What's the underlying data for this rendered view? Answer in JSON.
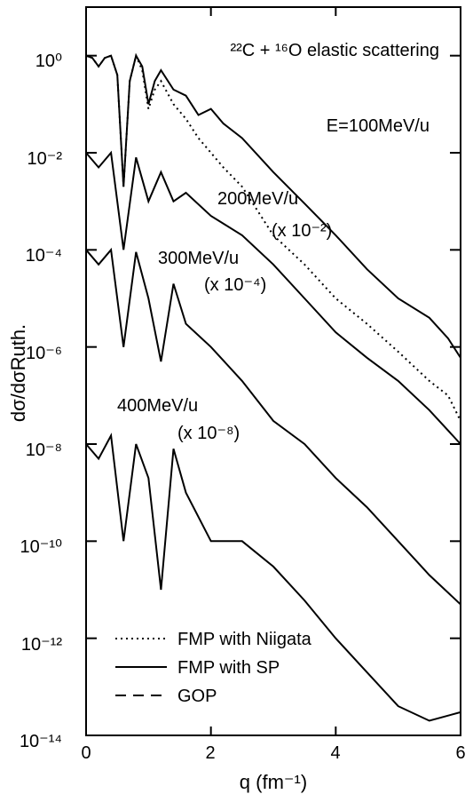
{
  "chart_data": {
    "type": "line",
    "title": "",
    "annotations": {
      "top": "²²C + ¹⁶O elastic scattering",
      "e100": "E=100MeV/u",
      "e200": "200MeV/u",
      "e200_scale": "(x 10⁻²)",
      "e300": "300MeV/u",
      "e300_scale": "(x 10⁻⁴)",
      "e400": "400MeV/u",
      "e400_scale": "(x 10⁻⁸)"
    },
    "xlabel": "q (fm⁻¹)",
    "ylabel": "dσ/dσRuth.",
    "xlim": [
      0,
      6
    ],
    "ylim": [
      1e-14,
      10
    ],
    "y_scale": "log",
    "x_ticks": [
      "0",
      "2",
      "4",
      "6"
    ],
    "y_ticks": [
      "10⁰",
      "10⁻²",
      "10⁻⁴",
      "10⁻⁶",
      "10⁻⁸",
      "10⁻¹⁰",
      "10⁻¹²",
      "10⁻¹⁴"
    ],
    "grid": false,
    "legend": {
      "position": "bottom-left",
      "entries": [
        {
          "label": "FMP with Niigata",
          "style": "dotted"
        },
        {
          "label": "FMP with SP",
          "style": "solid"
        },
        {
          "label": "GOP",
          "style": "long-dash"
        }
      ]
    },
    "groups": [
      {
        "energy": "100MeV/u",
        "scale": 1,
        "series": [
          {
            "name": "FMP with SP",
            "x": [
              0,
              0.1,
              0.2,
              0.3,
              0.4,
              0.5,
              0.6,
              0.7,
              0.8,
              0.9,
              1.0,
              1.1,
              1.2,
              1.4,
              1.6,
              1.8,
              2.0,
              2.2,
              2.5,
              3.0,
              3.5,
              4.0,
              4.5,
              5.0,
              5.5,
              5.8,
              6.0
            ],
            "y": [
              1,
              0.9,
              0.6,
              0.9,
              1,
              0.4,
              0.002,
              0.3,
              1,
              0.6,
              0.1,
              0.3,
              0.5,
              0.2,
              0.15,
              0.06,
              0.08,
              0.04,
              0.02,
              0.004,
              0.0009,
              0.0002,
              4e-05,
              1e-05,
              4e-06,
              1.5e-06,
              6e-07
            ]
          },
          {
            "name": "FMP with Niigata",
            "x": [
              0,
              0.1,
              0.2,
              0.3,
              0.4,
              0.5,
              0.6,
              0.7,
              0.8,
              0.9,
              1.0,
              1.1,
              1.2,
              1.4,
              1.6,
              1.8,
              2.0,
              2.2,
              2.5,
              3.0,
              3.5,
              4.0,
              4.5,
              5.0,
              5.5,
              5.8,
              6.0
            ],
            "y": [
              1,
              0.9,
              0.6,
              0.9,
              1,
              0.4,
              0.002,
              0.3,
              1,
              0.5,
              0.08,
              0.2,
              0.3,
              0.1,
              0.05,
              0.02,
              0.01,
              0.005,
              0.002,
              0.0002,
              5e-05,
              1e-05,
              3e-06,
              8e-07,
              2e-07,
              1e-07,
              3e-08
            ]
          }
        ]
      },
      {
        "energy": "200MeV/u",
        "scale": 0.01,
        "series": [
          {
            "name": "FMP with SP",
            "x": [
              0,
              0.2,
              0.4,
              0.6,
              0.8,
              1.0,
              1.2,
              1.4,
              1.6,
              2.0,
              2.5,
              3.0,
              3.5,
              4.0,
              4.5,
              5.0,
              5.5,
              6.0
            ],
            "y": [
              0.01,
              0.005,
              0.01,
              0.0001,
              0.008,
              0.001,
              0.004,
              0.001,
              0.0015,
              0.0005,
              0.0002,
              5e-05,
              1e-05,
              2e-06,
              6e-07,
              2e-07,
              5e-08,
              1e-08
            ]
          }
        ]
      },
      {
        "energy": "300MeV/u",
        "scale": 0.0001,
        "series": [
          {
            "name": "FMP with SP",
            "x": [
              0,
              0.2,
              0.4,
              0.6,
              0.8,
              1.0,
              1.2,
              1.4,
              1.6,
              2.0,
              2.5,
              3.0,
              3.5,
              4.0,
              4.5,
              5.0,
              5.5,
              6.0
            ],
            "y": [
              0.0001,
              5e-05,
              0.0001,
              1e-06,
              9e-05,
              1e-05,
              5e-07,
              2e-05,
              3e-06,
              1e-06,
              2e-07,
              3e-08,
              1e-08,
              2e-09,
              5e-10,
              1e-10,
              2e-11,
              5e-12
            ]
          }
        ]
      },
      {
        "energy": "400MeV/u",
        "scale": 1e-08,
        "series": [
          {
            "name": "FMP with SP",
            "x": [
              0,
              0.2,
              0.4,
              0.6,
              0.8,
              1.0,
              1.2,
              1.4,
              1.6,
              2.0,
              2.5,
              3.0,
              3.5,
              4.0,
              4.5,
              5.0,
              5.5,
              6.0
            ],
            "y": [
              1e-08,
              5e-09,
              1.5e-08,
              1e-10,
              1e-08,
              2e-09,
              1e-11,
              8e-09,
              1e-09,
              1e-10,
              1e-10,
              3e-11,
              6e-12,
              1e-12,
              2e-13,
              4e-14,
              2e-14,
              3e-14
            ]
          }
        ]
      }
    ]
  }
}
